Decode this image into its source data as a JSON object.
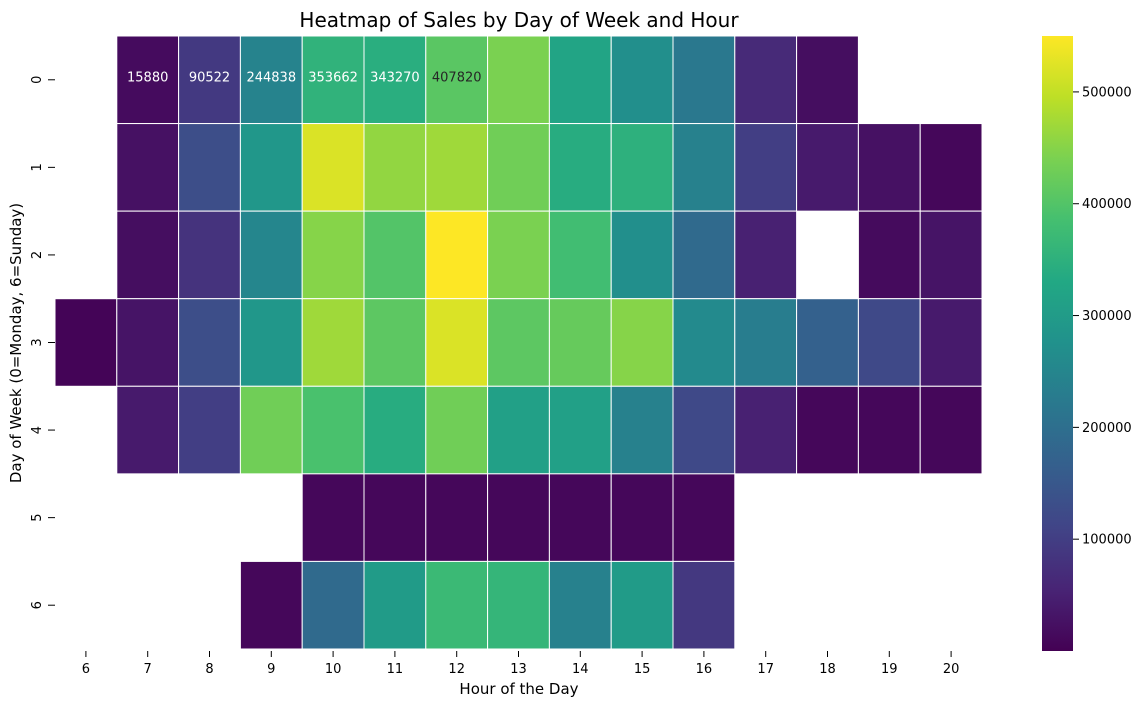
{
  "chart_data": {
    "type": "heatmap",
    "title": "Heatmap of Sales by Day of Week and Hour",
    "xlabel": "Hour of the Day",
    "ylabel": "Day of Week (0=Monday, 6=Sunday)",
    "x_categories": [
      "6",
      "7",
      "8",
      "9",
      "10",
      "11",
      "12",
      "13",
      "14",
      "15",
      "16",
      "17",
      "18",
      "19",
      "20"
    ],
    "y_categories": [
      "0",
      "1",
      "2",
      "3",
      "4",
      "5",
      "6"
    ],
    "colormap": "viridis",
    "color_range": [
      0,
      550000
    ],
    "colorbar_ticks": [
      "100000",
      "200000",
      "300000",
      "400000",
      "500000"
    ],
    "colorbar_tick_values": [
      100000,
      200000,
      300000,
      400000,
      500000
    ],
    "values": [
      [
        null,
        15880,
        90522,
        244838,
        353662,
        343270,
        407820,
        440000,
        320000,
        270000,
        220000,
        65000,
        20000,
        null,
        null
      ],
      [
        null,
        25000,
        130000,
        290000,
        520000,
        460000,
        470000,
        430000,
        340000,
        350000,
        240000,
        100000,
        40000,
        25000,
        10000
      ],
      [
        null,
        20000,
        80000,
        250000,
        450000,
        400000,
        550000,
        440000,
        380000,
        270000,
        190000,
        50000,
        null,
        15000,
        30000
      ],
      [
        5000,
        30000,
        130000,
        290000,
        470000,
        410000,
        520000,
        410000,
        420000,
        450000,
        260000,
        230000,
        170000,
        120000,
        40000
      ],
      [
        null,
        40000,
        100000,
        430000,
        390000,
        340000,
        430000,
        310000,
        310000,
        240000,
        120000,
        50000,
        10000,
        10000,
        10000
      ],
      [
        null,
        null,
        null,
        null,
        10000,
        10000,
        10000,
        10000,
        10000,
        10000,
        10000,
        null,
        null,
        null,
        null
      ],
      [
        null,
        null,
        null,
        10000,
        190000,
        300000,
        370000,
        360000,
        240000,
        300000,
        90000,
        null,
        null,
        null,
        null
      ]
    ],
    "annotations": [
      {
        "row": 0,
        "col": 1,
        "text": "15880"
      },
      {
        "row": 0,
        "col": 2,
        "text": "90522"
      },
      {
        "row": 0,
        "col": 3,
        "text": "244838"
      },
      {
        "row": 0,
        "col": 4,
        "text": "353662"
      },
      {
        "row": 0,
        "col": 5,
        "text": "343270"
      },
      {
        "row": 0,
        "col": 6,
        "text": "407820"
      }
    ]
  }
}
